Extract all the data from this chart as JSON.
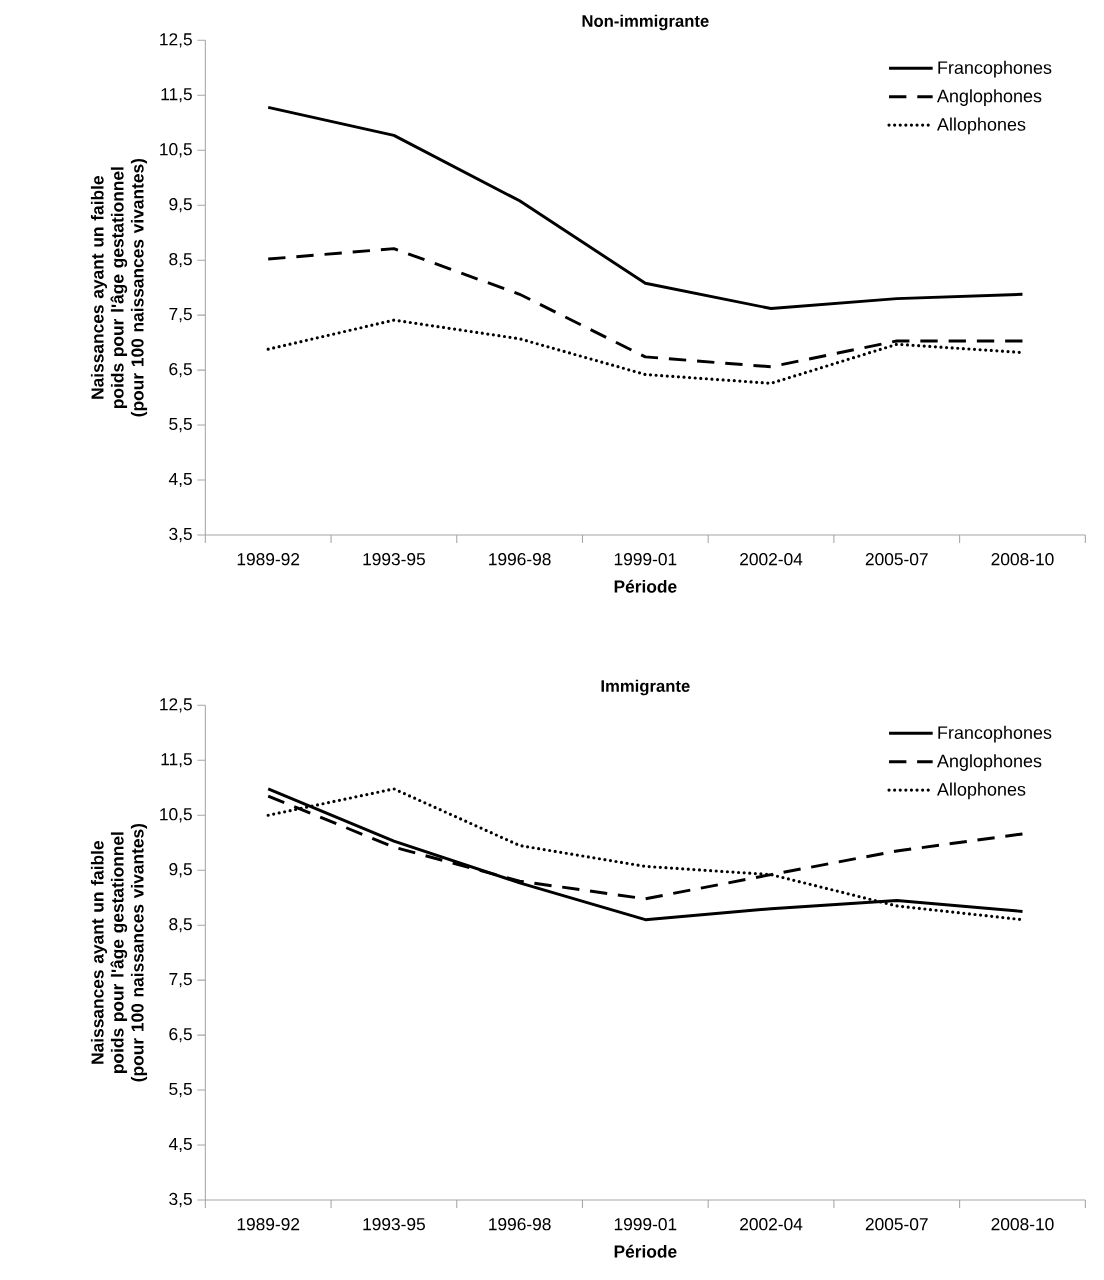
{
  "chart_data": [
    {
      "type": "line",
      "title": "Non-immigrante",
      "xlabel": "Période",
      "ylabel": "Naissances ayant un faible poids pour l'âge gestationnel (pour 100 naissances vivantes)",
      "categories": [
        "1989-92",
        "1993-95",
        "1996-98",
        "1999-01",
        "2002-04",
        "2005-07",
        "2008-10"
      ],
      "series": [
        {
          "name": "Francophones",
          "color": "#000000",
          "line_style": "solid",
          "values": [
            11.28,
            10.77,
            9.58,
            8.08,
            7.62,
            7.8,
            7.88
          ]
        },
        {
          "name": "Anglophones",
          "color": "#000000",
          "line_style": "dashed",
          "values": [
            8.52,
            8.71,
            7.88,
            6.74,
            6.56,
            7.03,
            7.03
          ]
        },
        {
          "name": "Allophones",
          "color": "#000000",
          "line_style": "dotted",
          "values": [
            6.88,
            7.41,
            7.07,
            6.42,
            6.26,
            6.97,
            6.82
          ]
        }
      ],
      "ylim": [
        3.5,
        12.5
      ],
      "yticks": [
        {
          "value": 3.5,
          "label": "3,5"
        },
        {
          "value": 4.5,
          "label": "4,5"
        },
        {
          "value": 5.5,
          "label": "5,5"
        },
        {
          "value": 6.5,
          "label": "6,5"
        },
        {
          "value": 7.5,
          "label": "7,5"
        },
        {
          "value": 8.5,
          "label": "8,5"
        },
        {
          "value": 9.5,
          "label": "9,5"
        },
        {
          "value": 10.5,
          "label": "10,5"
        },
        {
          "value": 11.5,
          "label": "11,5"
        },
        {
          "value": 12.5,
          "label": "12,5"
        }
      ],
      "legend": "top right"
    },
    {
      "type": "line",
      "title": "Immigrante",
      "xlabel": "Période",
      "ylabel": "Naissances ayant un faible poids pour l'âge gestationnel (pour 100 naissances vivantes)",
      "categories": [
        "1989-92",
        "1993-95",
        "1996-98",
        "1999-01",
        "2002-04",
        "2005-07",
        "2008-10"
      ],
      "series": [
        {
          "name": "Francophones",
          "color": "#000000",
          "line_style": "solid",
          "values": [
            10.98,
            10.03,
            9.27,
            8.6,
            8.8,
            8.95,
            8.75
          ]
        },
        {
          "name": "Anglophones",
          "color": "#000000",
          "line_style": "dashed",
          "values": [
            10.85,
            9.92,
            9.3,
            8.98,
            9.42,
            9.85,
            10.16
          ]
        },
        {
          "name": "Allophones",
          "color": "#000000",
          "line_style": "dotted",
          "values": [
            10.5,
            10.98,
            9.95,
            9.57,
            9.42,
            8.85,
            8.6
          ]
        }
      ],
      "ylim": [
        3.5,
        12.5
      ],
      "yticks": [
        {
          "value": 3.5,
          "label": "3,5"
        },
        {
          "value": 4.5,
          "label": "4,5"
        },
        {
          "value": 5.5,
          "label": "5,5"
        },
        {
          "value": 6.5,
          "label": "6,5"
        },
        {
          "value": 7.5,
          "label": "7,5"
        },
        {
          "value": 8.5,
          "label": "8,5"
        },
        {
          "value": 9.5,
          "label": "9,5"
        },
        {
          "value": 10.5,
          "label": "10,5"
        },
        {
          "value": 11.5,
          "label": "11,5"
        },
        {
          "value": 12.5,
          "label": "12,5"
        }
      ],
      "legend": "top right"
    }
  ]
}
